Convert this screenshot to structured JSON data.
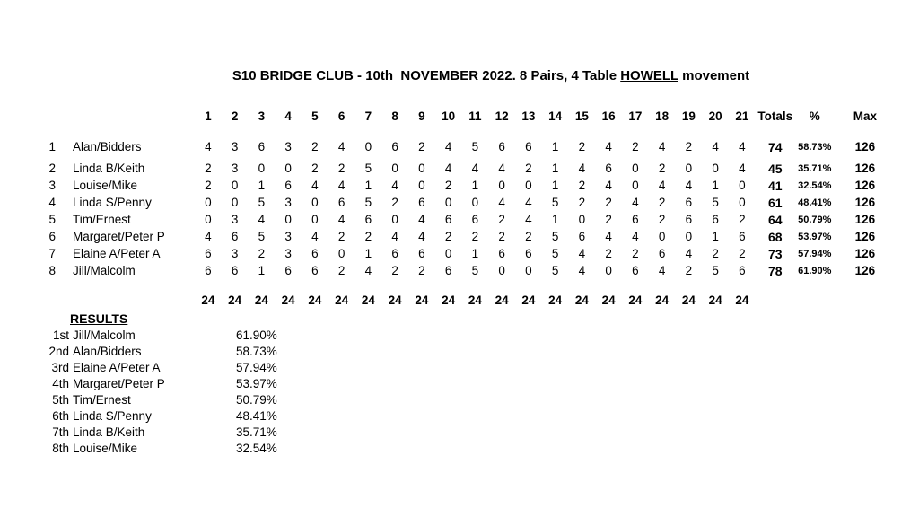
{
  "title": {
    "prefix": "S10 BRIDGE CLUB - 10th  NOVEMBER 2022. 8 Pairs, 4 Table ",
    "howell": "HOWELL",
    "suffix": " movement"
  },
  "score_table": {
    "round_headers": [
      "1",
      "2",
      "3",
      "4",
      "5",
      "6",
      "7",
      "8",
      "9",
      "10",
      "11",
      "12",
      "13",
      "14",
      "15",
      "16",
      "17",
      "18",
      "19",
      "20",
      "21"
    ],
    "totals_header": "Totals",
    "pct_header": "%",
    "max_header": "Max",
    "rows": [
      {
        "num": "1",
        "name": "Alan/Bidders",
        "scores": [
          4,
          3,
          6,
          3,
          2,
          4,
          0,
          6,
          2,
          4,
          5,
          6,
          6,
          1,
          2,
          4,
          2,
          4,
          2,
          4,
          4
        ],
        "total": "74",
        "pct": "58.73%",
        "max": "126"
      },
      {
        "num": "2",
        "name": "Linda B/Keith",
        "scores": [
          2,
          3,
          0,
          0,
          2,
          2,
          5,
          0,
          0,
          4,
          4,
          4,
          2,
          1,
          4,
          6,
          0,
          2,
          0,
          0,
          4
        ],
        "total": "45",
        "pct": "35.71%",
        "max": "126"
      },
      {
        "num": "3",
        "name": "Louise/Mike",
        "scores": [
          2,
          0,
          1,
          6,
          4,
          4,
          1,
          4,
          0,
          2,
          1,
          0,
          0,
          1,
          2,
          4,
          0,
          4,
          4,
          1,
          0
        ],
        "total": "41",
        "pct": "32.54%",
        "max": "126"
      },
      {
        "num": "4",
        "name": "Linda S/Penny",
        "scores": [
          0,
          0,
          5,
          3,
          0,
          6,
          5,
          2,
          6,
          0,
          0,
          4,
          4,
          5,
          2,
          2,
          4,
          2,
          6,
          5,
          0
        ],
        "total": "61",
        "pct": "48.41%",
        "max": "126"
      },
      {
        "num": "5",
        "name": "Tim/Ernest",
        "scores": [
          0,
          3,
          4,
          0,
          0,
          4,
          6,
          0,
          4,
          6,
          6,
          2,
          4,
          1,
          0,
          2,
          6,
          2,
          6,
          6,
          2
        ],
        "total": "64",
        "pct": "50.79%",
        "max": "126"
      },
      {
        "num": "6",
        "name": "Margaret/Peter P",
        "scores": [
          4,
          6,
          5,
          3,
          4,
          2,
          2,
          4,
          4,
          2,
          2,
          2,
          2,
          5,
          6,
          4,
          4,
          0,
          0,
          1,
          6
        ],
        "total": "68",
        "pct": "53.97%",
        "max": "126"
      },
      {
        "num": "7",
        "name": "Elaine A/Peter A",
        "scores": [
          6,
          3,
          2,
          3,
          6,
          0,
          1,
          6,
          6,
          0,
          1,
          6,
          6,
          5,
          4,
          2,
          2,
          6,
          4,
          2,
          2
        ],
        "total": "73",
        "pct": "57.94%",
        "max": "126"
      },
      {
        "num": "8",
        "name": "Jill/Malcolm",
        "scores": [
          6,
          6,
          1,
          6,
          6,
          2,
          4,
          2,
          2,
          6,
          5,
          0,
          0,
          5,
          4,
          0,
          6,
          4,
          2,
          5,
          6
        ],
        "total": "78",
        "pct": "61.90%",
        "max": "126"
      }
    ],
    "column_totals": [
      "24",
      "24",
      "24",
      "24",
      "24",
      "24",
      "24",
      "24",
      "24",
      "24",
      "24",
      "24",
      "24",
      "24",
      "24",
      "24",
      "24",
      "24",
      "24",
      "24",
      "24"
    ]
  },
  "results": {
    "heading": "RESULTS",
    "rows": [
      {
        "rank": "1st",
        "name": "Jill/Malcolm",
        "pct": "61.90%"
      },
      {
        "rank": "2nd",
        "name": "Alan/Bidders",
        "pct": "58.73%"
      },
      {
        "rank": "3rd",
        "name": "Elaine A/Peter A",
        "pct": "57.94%"
      },
      {
        "rank": "4th",
        "name": "Margaret/Peter P",
        "pct": "53.97%"
      },
      {
        "rank": "5th",
        "name": "Tim/Ernest",
        "pct": "50.79%"
      },
      {
        "rank": "6th",
        "name": "Linda S/Penny",
        "pct": "48.41%"
      },
      {
        "rank": "7th",
        "name": "Linda B/Keith",
        "pct": "35.71%"
      },
      {
        "rank": "8th",
        "name": "Louise/Mike",
        "pct": "32.54%"
      }
    ]
  }
}
